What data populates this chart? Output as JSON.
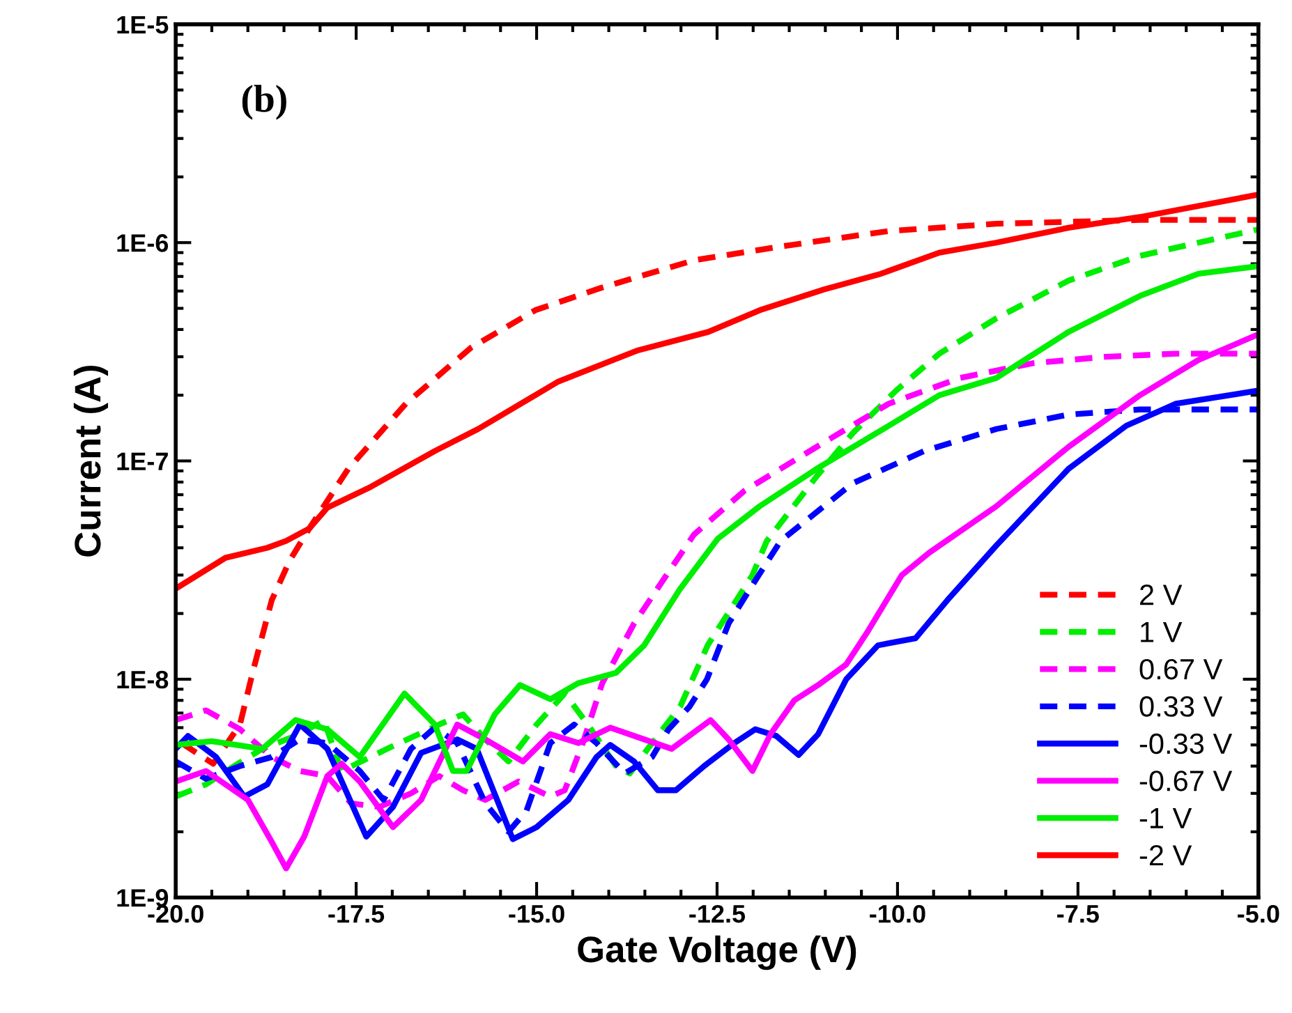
{
  "chart_data": {
    "type": "line",
    "xlabel": "Gate Voltage (V)",
    "ylabel": "Current (A)",
    "log": "y",
    "legend": "bottom right",
    "grid": false,
    "annotations": [
      "(b)"
    ],
    "xlim": [
      -20,
      -5
    ],
    "xticks": [
      {
        "value": -20,
        "label": "-20.0"
      },
      {
        "value": -17.5,
        "label": "-17.5"
      },
      {
        "value": -15,
        "label": "-15.0"
      },
      {
        "value": -12.5,
        "label": "-12.5"
      },
      {
        "value": -10,
        "label": "-10.0"
      },
      {
        "value": -7.5,
        "label": "-7.5"
      },
      {
        "value": -5,
        "label": "-5.0"
      }
    ],
    "ylim": [
      1e-09,
      1e-05
    ],
    "yticks": [
      {
        "value": 1e-09,
        "label": "1E-9"
      },
      {
        "value": 1e-08,
        "label": "1E-8"
      },
      {
        "value": 1e-07,
        "label": "1E-7"
      },
      {
        "value": 1e-06,
        "label": "1E-6"
      },
      {
        "value": 1e-05,
        "label": "1E-5"
      }
    ],
    "series": [
      {
        "name": "2 V",
        "color": "#ff0000",
        "line_style": "dashed",
        "x": [
          -19.92,
          -19.48,
          -19.11,
          -18.92,
          -18.67,
          -18.42,
          -18.15,
          -17.61,
          -16.81,
          -15.91,
          -15.02,
          -14.11,
          -12.82,
          -11.62,
          -10.12,
          -8.63,
          -6.64,
          -5.0
        ],
        "values": [
          5.1e-09,
          4.1e-09,
          6.2e-09,
          1.12e-08,
          2.3e-08,
          3.5e-08,
          4.9e-08,
          9.2e-08,
          1.83e-07,
          3.3e-07,
          4.9e-07,
          6.2e-07,
          8.3e-07,
          9.6e-07,
          1.13e-06,
          1.22e-06,
          1.27e-06,
          1.27e-06
        ]
      },
      {
        "name": "1 V",
        "color": "#00ee00",
        "line_style": "dashed",
        "x": [
          -20,
          -19.58,
          -19.19,
          -18.8,
          -18.28,
          -17.95,
          -17.7,
          -17.07,
          -16.35,
          -16.02,
          -15.71,
          -15.39,
          -15.0,
          -14.61,
          -14.29,
          -13.9,
          -13.71,
          -13.46,
          -13.01,
          -12.63,
          -12.01,
          -11.81,
          -11.12,
          -10.62,
          -10.02,
          -9.42,
          -8.63,
          -7.63,
          -6.64,
          -5.83,
          -5.0
        ],
        "values": [
          2.9e-09,
          3.3e-09,
          4e-09,
          4.8e-09,
          5.6e-09,
          6.5e-09,
          3.8e-09,
          4.8e-09,
          6.2e-09,
          6.9e-09,
          5.3e-09,
          4.2e-09,
          6.2e-09,
          8.6e-09,
          6.2e-09,
          4e-09,
          3.7e-09,
          4.8e-09,
          7.5e-09,
          1.43e-08,
          3e-08,
          4.3e-08,
          8.5e-08,
          1.34e-07,
          2.1e-07,
          3.1e-07,
          4.5e-07,
          6.7e-07,
          8.7e-07,
          1e-06,
          1.15e-06
        ]
      },
      {
        "name": "0.67 V",
        "color": "#ff00ff",
        "line_style": "dashed",
        "x": [
          -20,
          -19.58,
          -19.11,
          -18.67,
          -18.28,
          -17.9,
          -17.57,
          -17.18,
          -16.74,
          -16.35,
          -16.02,
          -15.71,
          -15.25,
          -14.81,
          -14.61,
          -14.36,
          -14.09,
          -13.65,
          -13.2,
          -12.82,
          -12.12,
          -11.12,
          -10.12,
          -9.13,
          -8.13,
          -7.12,
          -6.14,
          -5.0
        ],
        "values": [
          6.5e-09,
          7.2e-09,
          5.9e-09,
          4.4e-09,
          3.8e-09,
          3.6e-09,
          2.7e-09,
          2.6e-09,
          3e-09,
          3.6e-09,
          3.1e-09,
          2.8e-09,
          3.4e-09,
          2.9e-09,
          3.1e-09,
          5.1e-09,
          9.6e-09,
          1.8e-08,
          3e-08,
          4.6e-08,
          7.3e-08,
          1.16e-07,
          1.83e-07,
          2.4e-07,
          2.8e-07,
          3e-07,
          3.1e-07,
          3.1e-07
        ]
      },
      {
        "name": "0.33 V",
        "color": "#0000ff",
        "line_style": "dashed",
        "x": [
          -20,
          -19.58,
          -19.11,
          -18.67,
          -18.28,
          -17.9,
          -17.45,
          -17.12,
          -16.74,
          -16.41,
          -16.1,
          -15.71,
          -15.39,
          -15.14,
          -14.81,
          -14.48,
          -14.17,
          -13.78,
          -13.4,
          -13.17,
          -12.88,
          -12.64,
          -12.34,
          -12.01,
          -11.62,
          -10.62,
          -9.63,
          -8.63,
          -7.63,
          -6.64,
          -5.0
        ],
        "values": [
          4.2e-09,
          3.5e-09,
          4e-09,
          4.4e-09,
          5.3e-09,
          5.1e-09,
          3.8e-09,
          2.8e-09,
          4.8e-09,
          6e-09,
          5.1e-09,
          2.7e-09,
          2e-09,
          2.5e-09,
          5.1e-09,
          6.2e-09,
          5.1e-09,
          3.7e-09,
          4.4e-09,
          5.9e-09,
          7.5e-09,
          1e-08,
          1.8e-08,
          2.7e-08,
          4.3e-08,
          7.9e-08,
          1.11e-07,
          1.4e-07,
          1.63e-07,
          1.72e-07,
          1.72e-07
        ]
      },
      {
        "name": "-0.33 V",
        "color": "#0000ff",
        "line_style": "solid",
        "x": [
          -20,
          -19.83,
          -19.44,
          -19.05,
          -18.73,
          -18.28,
          -17.9,
          -17.36,
          -16.99,
          -16.6,
          -16.1,
          -15.83,
          -15.33,
          -15.0,
          -14.56,
          -14.17,
          -13.98,
          -13.65,
          -13.32,
          -13.07,
          -12.68,
          -12.26,
          -11.97,
          -11.68,
          -11.37,
          -11.1,
          -10.71,
          -10.27,
          -9.75,
          -9.31,
          -8.63,
          -7.63,
          -6.83,
          -6.14,
          -5.0
        ],
        "values": [
          4.8e-09,
          5.5e-09,
          4.4e-09,
          2.9e-09,
          3.3e-09,
          6.2e-09,
          4.8e-09,
          1.9e-09,
          2.6e-09,
          4.6e-09,
          5.3e-09,
          4.8e-09,
          1.85e-09,
          2.1e-09,
          2.8e-09,
          4.4e-09,
          5e-09,
          4.2e-09,
          3.1e-09,
          3.1e-09,
          4e-09,
          5.1e-09,
          5.9e-09,
          5.5e-09,
          4.5e-09,
          5.6e-09,
          1e-08,
          1.43e-08,
          1.54e-08,
          2.3e-08,
          4.1e-08,
          9.2e-08,
          1.45e-07,
          1.83e-07,
          2.1e-07
        ]
      },
      {
        "name": "-0.67 V",
        "color": "#ff00ff",
        "line_style": "solid",
        "x": [
          -20,
          -19.58,
          -19.0,
          -18.67,
          -18.47,
          -18.22,
          -17.9,
          -17.7,
          -17.45,
          -16.99,
          -16.6,
          -16.1,
          -15.71,
          -15.19,
          -14.81,
          -14.42,
          -13.98,
          -13.51,
          -13.13,
          -12.59,
          -12.34,
          -12.01,
          -11.76,
          -11.43,
          -11.1,
          -10.71,
          -10.41,
          -9.94,
          -9.56,
          -8.63,
          -7.63,
          -6.64,
          -5.83,
          -5.0
        ],
        "values": [
          3.4e-09,
          3.8e-09,
          2.8e-09,
          1.8e-09,
          1.36e-09,
          1.9e-09,
          3.6e-09,
          4.1e-09,
          3.4e-09,
          2.1e-09,
          2.8e-09,
          6.2e-09,
          5.3e-09,
          4.2e-09,
          5.6e-09,
          5.1e-09,
          6e-09,
          5.3e-09,
          4.8e-09,
          6.5e-09,
          5.3e-09,
          3.8e-09,
          5.6e-09,
          8e-09,
          9.4e-09,
          1.17e-08,
          1.66e-08,
          3e-08,
          3.8e-08,
          6.2e-08,
          1.16e-07,
          2e-07,
          2.9e-07,
          3.8e-07
        ]
      },
      {
        "name": "-1 V",
        "color": "#00ee00",
        "line_style": "solid",
        "x": [
          -20,
          -19.5,
          -18.8,
          -18.34,
          -17.9,
          -17.45,
          -16.83,
          -16.41,
          -16.16,
          -15.97,
          -15.58,
          -15.23,
          -14.81,
          -14.42,
          -13.9,
          -13.51,
          -13.01,
          -12.49,
          -11.91,
          -11.12,
          -10.12,
          -9.42,
          -8.63,
          -7.63,
          -6.64,
          -5.83,
          -5.0
        ],
        "values": [
          5e-09,
          5.2e-09,
          4.8e-09,
          6.5e-09,
          5.9e-09,
          4.4e-09,
          8.6e-09,
          6.2e-09,
          3.8e-09,
          3.8e-09,
          6.9e-09,
          9.4e-09,
          8.1e-09,
          9.6e-09,
          1.07e-08,
          1.43e-08,
          2.6e-08,
          4.4e-08,
          6.2e-08,
          9.2e-08,
          1.45e-07,
          2e-07,
          2.4e-07,
          3.9e-07,
          5.7e-07,
          7.2e-07,
          7.8e-07
        ]
      },
      {
        "name": "-2 V",
        "color": "#ff0000",
        "line_style": "solid",
        "x": [
          -20,
          -19.31,
          -18.73,
          -18.47,
          -18.15,
          -17.9,
          -17.3,
          -16.41,
          -15.81,
          -14.71,
          -13.61,
          -12.62,
          -11.91,
          -11.02,
          -10.23,
          -9.42,
          -8.63,
          -7.63,
          -6.64,
          -5.0
        ],
        "values": [
          2.6e-08,
          3.6e-08,
          4e-08,
          4.3e-08,
          4.9e-08,
          6.1e-08,
          7.6e-08,
          1.11e-07,
          1.4e-07,
          2.3e-07,
          3.2e-07,
          3.9e-07,
          4.9e-07,
          6.1e-07,
          7.2e-07,
          9e-07,
          1e-06,
          1.17e-06,
          1.31e-06,
          1.66e-06
        ]
      }
    ]
  }
}
